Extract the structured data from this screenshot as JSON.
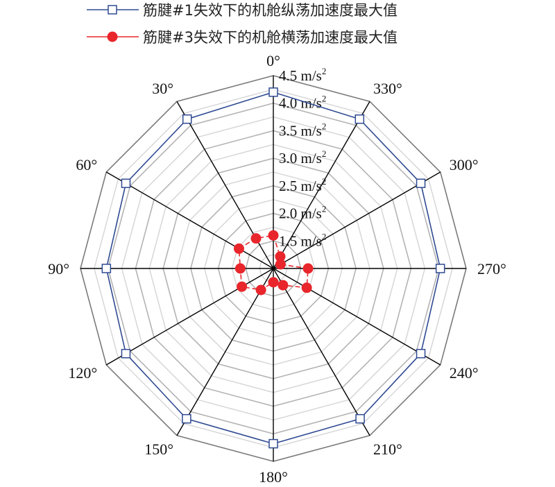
{
  "chart_data": {
    "type": "radar",
    "title": "",
    "angles": [
      "0°",
      "330°",
      "300°",
      "270°",
      "240°",
      "210°",
      "180°",
      "150°",
      "120°",
      "90°",
      "60°",
      "30°"
    ],
    "radial_axis": {
      "min": 1.0,
      "max": 4.5,
      "tick_values": [
        1.5,
        2.0,
        2.5,
        3.0,
        3.5,
        4.0,
        4.5
      ],
      "tick_labels": [
        "1.5 m/s",
        "2.0 m/s",
        "2.5 m/s",
        "3.0 m/s",
        "3.5 m/s",
        "4.0 m/s",
        "4.5 m/s"
      ],
      "unit_superscript": "2",
      "minor_rings": [
        1.25,
        1.5,
        1.75,
        2.0,
        2.25,
        2.5,
        2.75,
        3.0,
        3.25,
        3.5,
        3.75,
        4.0,
        4.25
      ]
    },
    "legend_position": "top",
    "series": [
      {
        "name": "筋腱#1失效下的机舱纵荡加速度最大值",
        "color": "#2f4a92",
        "marker": "square-open",
        "values": [
          4.2,
          4.13,
          4.09,
          4.03,
          4.09,
          4.15,
          4.18,
          4.15,
          4.09,
          4.03,
          4.09,
          4.13
        ]
      },
      {
        "name": "筋腱#3失效下的机舱横荡加速度最大值",
        "color": "#e8262c",
        "marker": "circle-filled",
        "values": [
          1.6,
          1.25,
          1.15,
          1.63,
          1.7,
          1.35,
          1.25,
          1.45,
          1.66,
          1.6,
          1.72,
          1.63
        ]
      }
    ]
  }
}
